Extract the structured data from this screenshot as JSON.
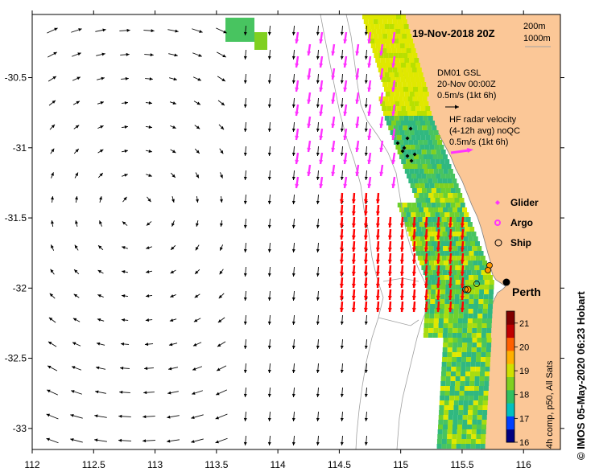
{
  "title": "19-Nov-2018 20Z",
  "depth_contours": [
    "200m",
    "1000m"
  ],
  "wind": {
    "source": "DM01 GSL",
    "time": "20-Nov 00:00Z",
    "scale": "0.5m/s (1kt 6h)"
  },
  "hf_radar": {
    "line1": "HF radar velocity",
    "line2": "(4-12h avg) noQC",
    "scale": "0.5m/s (1kt 6h)"
  },
  "legend": [
    {
      "label": "Glider",
      "color": "#ff33ff",
      "marker": "diamond"
    },
    {
      "label": "Argo",
      "color": "#ff33ff",
      "marker": "ring"
    },
    {
      "label": "Ship",
      "color": "#000000",
      "marker": "circle"
    }
  ],
  "city": {
    "name": "Perth",
    "lon": 115.86,
    "lat": -31.95
  },
  "x_axis": {
    "ticks": [
      "112",
      "112.5",
      "113",
      "113.5",
      "114",
      "114.5",
      "115",
      "115.5",
      "116"
    ],
    "range": [
      112,
      116.3
    ]
  },
  "y_axis": {
    "ticks": [
      "-30.5",
      "-31",
      "-31.5",
      "-32",
      "-32.5",
      "-33"
    ],
    "range": [
      -30.05,
      -33.15
    ]
  },
  "colorbar": {
    "label": "4h comp, p50, All Sats",
    "ticks": [
      "16",
      "17",
      "18",
      "19",
      "20",
      "21"
    ],
    "range": [
      16,
      21.5
    ],
    "colors": [
      "#000080",
      "#0040ff",
      "#00c0c0",
      "#30c060",
      "#80d020",
      "#d0e000",
      "#ffb000",
      "#ff6000",
      "#c00000",
      "#800000"
    ]
  },
  "credit": "© IMOS 05-May-2020 06:23 Hobart",
  "colors": {
    "land": "#fbc797",
    "coast": "#808080",
    "wind_arrows": "#000000",
    "hf_north": "#ff33ff",
    "hf_south": "#ff0000"
  }
}
